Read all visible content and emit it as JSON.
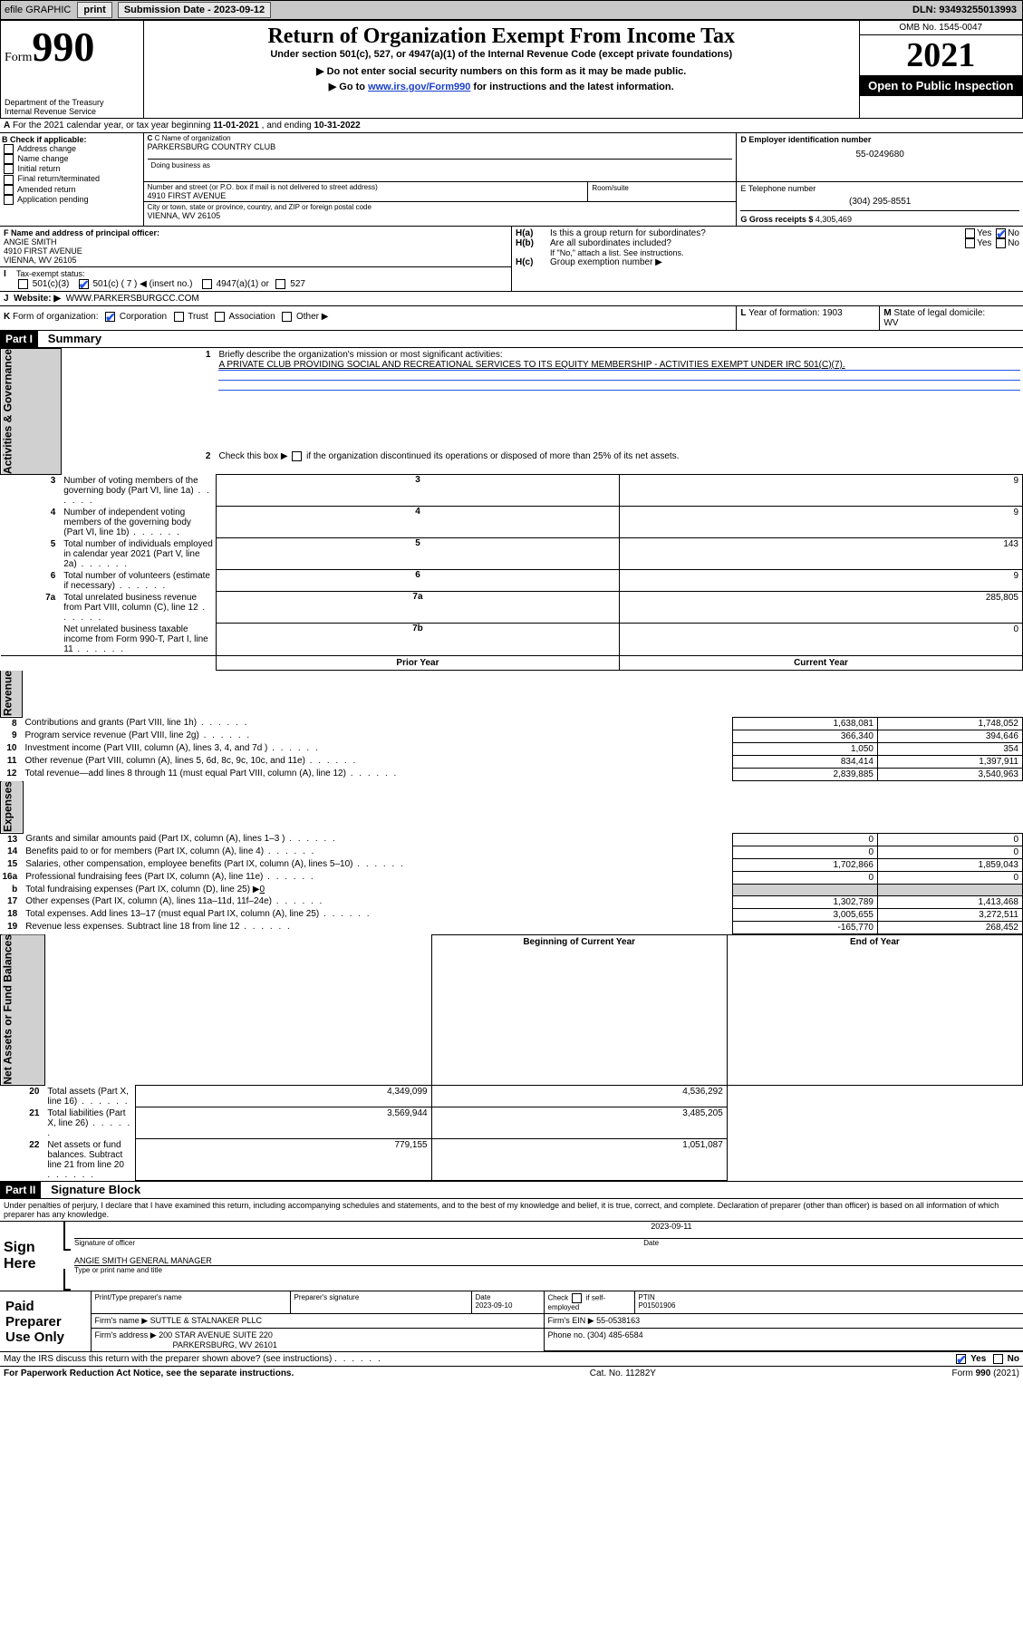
{
  "topbar": {
    "efile_label": "efile GRAPHIC",
    "print_btn": "print",
    "sub_label": "Submission Date - ",
    "sub_date": "2023-09-12",
    "dln_label": "DLN: ",
    "dln": "93493255013993"
  },
  "header": {
    "form_prefix": "Form",
    "form_number": "990",
    "dept": "Department of the Treasury",
    "irs": "Internal Revenue Service",
    "title": "Return of Organization Exempt From Income Tax",
    "sub1": "Under section 501(c), 527, or 4947(a)(1) of the Internal Revenue Code (except private foundations)",
    "sub2": "▶ Do not enter social security numbers on this form as it may be made public.",
    "sub3_pre": "▶ Go to ",
    "sub3_link": "www.irs.gov/Form990",
    "sub3_post": " for instructions and the latest information.",
    "omb": "OMB No. 1545-0047",
    "year": "2021",
    "open": "Open to Public Inspection"
  },
  "A": {
    "line": "For the 2021 calendar year, or tax year beginning ",
    "start": "11-01-2021",
    "mid": " , and ending ",
    "end": "10-31-2022",
    "prefix": "A"
  },
  "B": {
    "title": "B Check if applicable:",
    "opts": [
      "Address change",
      "Name change",
      "Initial return",
      "Final return/terminated",
      "Amended return",
      "Application pending"
    ]
  },
  "C": {
    "name_lbl": "C Name of organization",
    "name": "PARKERSBURG COUNTRY CLUB",
    "dba_lbl": "Doing business as",
    "street_lbl": "Number and street (or P.O. box if mail is not delivered to street address)",
    "room_lbl": "Room/suite",
    "street": "4910 FIRST AVENUE",
    "city_lbl": "City or town, state or province, country, and ZIP or foreign postal code",
    "city": "VIENNA, WV  26105"
  },
  "D": {
    "lbl": "D Employer identification number",
    "val": "55-0249680"
  },
  "E": {
    "lbl": "E Telephone number",
    "val": "(304) 295-8551"
  },
  "G": {
    "lbl": "G Gross receipts $ ",
    "val": "4,305,469"
  },
  "F": {
    "lbl": "F Name and address of principal officer:",
    "name": "ANGIE SMITH",
    "street": "4910 FIRST AVENUE",
    "city": "VIENNA, WV  26105"
  },
  "H": {
    "a_lbl": "H(a)",
    "a_txt": "Is this a group return for subordinates?",
    "b_lbl": "H(b)",
    "b_txt": "Are all subordinates included?",
    "b_note": "If \"No,\" attach a list. See instructions.",
    "c_lbl": "H(c)",
    "c_txt": "Group exemption number ▶",
    "yes": "Yes",
    "no": "No"
  },
  "I": {
    "lbl": "I",
    "title": "Tax-exempt status:",
    "c3": "501(c)(3)",
    "c_pre": "501(c) ( ",
    "c_num": "7",
    "c_post": " ) ◀ (insert no.)",
    "a4947": "4947(a)(1) or",
    "s527": "527"
  },
  "J": {
    "lbl": "J",
    "title": "Website: ▶",
    "val": "WWW.PARKERSBURGCC.COM"
  },
  "K": {
    "lbl": "K",
    "title": "Form of organization:",
    "opts": [
      "Corporation",
      "Trust",
      "Association",
      "Other ▶"
    ]
  },
  "L": {
    "lbl": "L",
    "txt": "Year of formation: ",
    "val": "1903"
  },
  "M": {
    "lbl": "M",
    "txt": "State of legal domicile:",
    "val": "WV"
  },
  "part1": {
    "hdr": "Part I",
    "title": "Summary"
  },
  "p1_1_lbl": "Briefly describe the organization's mission or most significant activities:",
  "p1_1_val": "A PRIVATE CLUB PROVIDING SOCIAL AND RECREATIONAL SERVICES TO ITS EQUITY MEMBERSHIP - ACTIVITIES EXEMPT UNDER IRC 501(C)(7).",
  "p1_2": "Check this box ▶",
  "p1_2b": "if the organization discontinued its operations or disposed of more than 25% of its net assets.",
  "rows_act": [
    {
      "n": "3",
      "t": "Number of voting members of the governing body (Part VI, line 1a)",
      "box": "3",
      "v": "9"
    },
    {
      "n": "4",
      "t": "Number of independent voting members of the governing body (Part VI, line 1b)",
      "box": "4",
      "v": "9"
    },
    {
      "n": "5",
      "t": "Total number of individuals employed in calendar year 2021 (Part V, line 2a)",
      "box": "5",
      "v": "143"
    },
    {
      "n": "6",
      "t": "Total number of volunteers (estimate if necessary)",
      "box": "6",
      "v": "9"
    },
    {
      "n": "7a",
      "t": "Total unrelated business revenue from Part VIII, column (C), line 12",
      "box": "7a",
      "v": "285,805"
    },
    {
      "n": "",
      "t": "Net unrelated business taxable income from Form 990-T, Part I, line 11",
      "box": "7b",
      "v": "0"
    }
  ],
  "colhdr": {
    "prior": "Prior Year",
    "current": "Current Year",
    "beg": "Beginning of Current Year",
    "end": "End of Year"
  },
  "rows_rev": [
    {
      "n": "8",
      "t": "Contributions and grants (Part VIII, line 1h)",
      "p": "1,638,081",
      "c": "1,748,052"
    },
    {
      "n": "9",
      "t": "Program service revenue (Part VIII, line 2g)",
      "p": "366,340",
      "c": "394,646"
    },
    {
      "n": "10",
      "t": "Investment income (Part VIII, column (A), lines 3, 4, and 7d )",
      "p": "1,050",
      "c": "354"
    },
    {
      "n": "11",
      "t": "Other revenue (Part VIII, column (A), lines 5, 6d, 8c, 9c, 10c, and 11e)",
      "p": "834,414",
      "c": "1,397,911"
    },
    {
      "n": "12",
      "t": "Total revenue—add lines 8 through 11 (must equal Part VIII, column (A), line 12)",
      "p": "2,839,885",
      "c": "3,540,963"
    }
  ],
  "rows_exp": [
    {
      "n": "13",
      "t": "Grants and similar amounts paid (Part IX, column (A), lines 1–3 )",
      "p": "0",
      "c": "0"
    },
    {
      "n": "14",
      "t": "Benefits paid to or for members (Part IX, column (A), line 4)",
      "p": "0",
      "c": "0"
    },
    {
      "n": "15",
      "t": "Salaries, other compensation, employee benefits (Part IX, column (A), lines 5–10)",
      "p": "1,702,866",
      "c": "1,859,043"
    },
    {
      "n": "16a",
      "t": "Professional fundraising fees (Part IX, column (A), line 11e)",
      "p": "0",
      "c": "0"
    }
  ],
  "row_16b": {
    "n": "b",
    "t": "Total fundraising expenses (Part IX, column (D), line 25) ▶",
    "v": "0"
  },
  "rows_exp2": [
    {
      "n": "17",
      "t": "Other expenses (Part IX, column (A), lines 11a–11d, 11f–24e)",
      "p": "1,302,789",
      "c": "1,413,468"
    },
    {
      "n": "18",
      "t": "Total expenses. Add lines 13–17 (must equal Part IX, column (A), line 25)",
      "p": "3,005,655",
      "c": "3,272,511"
    },
    {
      "n": "19",
      "t": "Revenue less expenses. Subtract line 18 from line 12",
      "p": "-165,770",
      "c": "268,452"
    }
  ],
  "rows_net": [
    {
      "n": "20",
      "t": "Total assets (Part X, line 16)",
      "p": "4,349,099",
      "c": "4,536,292"
    },
    {
      "n": "21",
      "t": "Total liabilities (Part X, line 26)",
      "p": "3,569,944",
      "c": "3,485,205"
    },
    {
      "n": "22",
      "t": "Net assets or fund balances. Subtract line 21 from line 20",
      "p": "779,155",
      "c": "1,051,087"
    }
  ],
  "vlabels": {
    "act": "Activities & Governance",
    "rev": "Revenue",
    "exp": "Expenses",
    "net": "Net Assets or Fund Balances"
  },
  "part2": {
    "hdr": "Part II",
    "title": "Signature Block"
  },
  "perjury": "Under penalties of perjury, I declare that I have examined this return, including accompanying schedules and statements, and to the best of my knowledge and belief, it is true, correct, and complete. Declaration of preparer (other than officer) is based on all information of which preparer has any knowledge.",
  "sign": {
    "here": "Sign Here",
    "sig_lbl": "Signature of officer",
    "date_lbl": "Date",
    "date": "2023-09-11",
    "name": "ANGIE SMITH  GENERAL MANAGER",
    "name_lbl": "Type or print name and title"
  },
  "paid": {
    "title": "Paid Preparer Use Only",
    "c1": "Print/Type preparer's name",
    "c2": "Preparer's signature",
    "c3": "Date",
    "date": "2023-09-10",
    "c4_pre": "Check",
    "c4_post": "if self-employed",
    "c5": "PTIN",
    "ptin": "P01501906",
    "firm_lbl": "Firm's name    ▶",
    "firm": "SUTTLE & STALNAKER PLLC",
    "ein_lbl": "Firm's EIN ▶ ",
    "ein": "55-0538163",
    "addr_lbl": "Firm's address ▶",
    "addr1": "200 STAR AVENUE SUITE 220",
    "addr2": "PARKERSBURG, WV  26101",
    "phone_lbl": "Phone no. ",
    "phone": "(304) 485-6584"
  },
  "may_irs": "May the IRS discuss this return with the preparer shown above? (see instructions)",
  "footer": {
    "pra": "For Paperwork Reduction Act Notice, see the separate instructions.",
    "cat": "Cat. No. 11282Y",
    "form": "Form 990 (2021)"
  }
}
